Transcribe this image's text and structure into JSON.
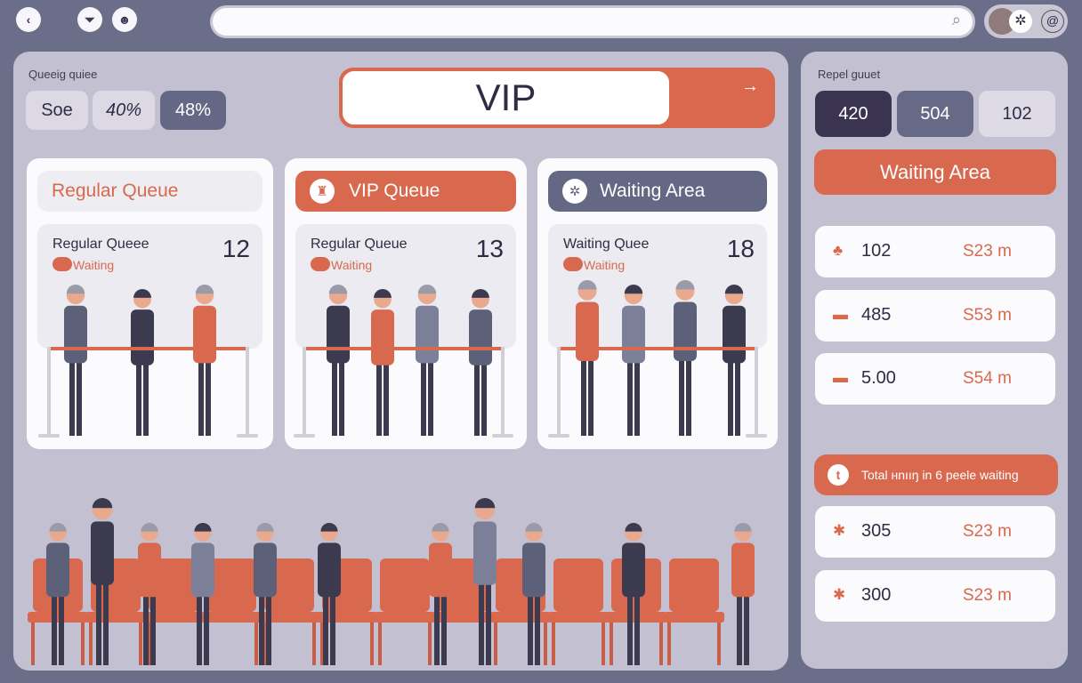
{
  "topbar": {
    "icons": [
      "back-icon",
      "filter-icon",
      "user-icon"
    ],
    "search_placeholder": "",
    "search_icon": "search-icon",
    "avatar_icons": [
      "avatar",
      "snowflake-icon",
      "at-icon"
    ]
  },
  "left": {
    "label": "Queeig quiee",
    "chips": [
      "Soe",
      "40%",
      "48%"
    ],
    "vip_bar": {
      "label": "VIP",
      "arrow": "→"
    },
    "cards": [
      {
        "header": "Regular Queue",
        "header_icon": "",
        "inner_title": "Regular Queee",
        "count": "12",
        "status": "Waiting"
      },
      {
        "header": "VIP Queue",
        "header_icon": "♜",
        "inner_title": "Regular Queue",
        "count": "13",
        "status": "Waiting"
      },
      {
        "header": "Waiting Area",
        "header_icon": "✲",
        "inner_title": "Waiting Quee",
        "count": "18",
        "status": "Waiting"
      }
    ]
  },
  "right": {
    "label": "Repel guuet",
    "chips": [
      "420",
      "504",
      "102"
    ],
    "waiting_button": "Waiting Area",
    "rows": [
      {
        "icon": "♣",
        "value": "102",
        "amount": "S23 m"
      },
      {
        "icon": "▬",
        "value": "485",
        "amount": "S53 m"
      },
      {
        "icon": "▬",
        "value": "5.00",
        "amount": "S54 m"
      }
    ],
    "total_banner": {
      "icon": "t",
      "text": "Total нnııŋ in 6 peele waiting"
    },
    "rows2": [
      {
        "icon": "✱",
        "value": "305",
        "amount": "S23 m"
      },
      {
        "icon": "✱",
        "value": "300",
        "amount": "S23 m"
      }
    ]
  },
  "colors": {
    "accent": "#d8694f",
    "dark": "#3a3450",
    "slate": "#666a86",
    "panel": "#c3c0d2"
  }
}
